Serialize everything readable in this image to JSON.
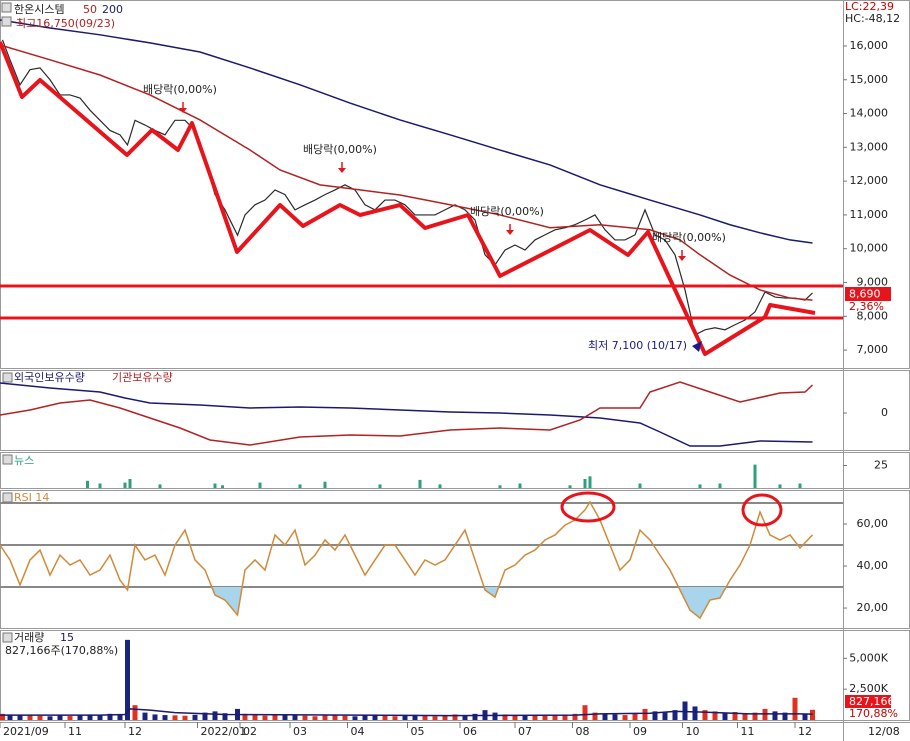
{
  "chart_data": [
    {
      "type": "line",
      "xlim": [
        0,
        337.2
      ],
      "ylim": [
        6470,
        17360
      ],
      "yticks": [
        {
          "value": 16000,
          "label": "16,000"
        },
        {
          "value": 15000,
          "label": "15,000"
        },
        {
          "value": 14000,
          "label": "14,000"
        },
        {
          "value": 13000,
          "label": "13,000"
        },
        {
          "value": 12000,
          "label": "12,000"
        },
        {
          "value": 11000,
          "label": "11,000"
        },
        {
          "value": 10000,
          "label": "10,000"
        },
        {
          "value": 9000,
          "label": "9,000"
        },
        {
          "value": 8000,
          "label": "8,000"
        },
        {
          "value": 7000,
          "label": "7,000"
        }
      ],
      "high_label": "최고16,750(09/23)",
      "lc": "LC:22,39",
      "hc": "HC:-48,12",
      "last_label": "8,690",
      "last_change": "2,36%",
      "annotations": [
        "배당락(0,00%)",
        "배당락(0,00%)",
        "배당락(0,00%)",
        "배당락(0,00%)",
        "최저 7,100 (10/17)"
      ],
      "series": [
        {
          "name": "한온시스템",
          "color": "#2a2a2a",
          "x": [
            1,
            4,
            8,
            12,
            16,
            20,
            24,
            28,
            32,
            36,
            40,
            44,
            48,
            51,
            54,
            58,
            62,
            66,
            70,
            74,
            78,
            82,
            86,
            90,
            95,
            98,
            102,
            106,
            110,
            114,
            118,
            122,
            126,
            130,
            134,
            138,
            142,
            146,
            150,
            154,
            158,
            162,
            166,
            170,
            174,
            178,
            182,
            186,
            190,
            194,
            198,
            202,
            206,
            210,
            214,
            218,
            222,
            226,
            230,
            234,
            238,
            242,
            246,
            250,
            254,
            258,
            262,
            266,
            270,
            274,
            278,
            282,
            286,
            290,
            294,
            298,
            302,
            306,
            310,
            314,
            318,
            322,
            325
          ],
          "values": [
            16180,
            15590,
            14850,
            15300,
            15350,
            15000,
            14550,
            14550,
            14460,
            14100,
            13800,
            13500,
            13370,
            13070,
            13800,
            13660,
            13500,
            13370,
            13800,
            13800,
            13500,
            12630,
            11600,
            11150,
            10400,
            11000,
            11300,
            11440,
            11740,
            11600,
            11150,
            11300,
            11440,
            11600,
            11740,
            11890,
            11740,
            11300,
            11150,
            11440,
            11440,
            11300,
            11000,
            11000,
            11000,
            11150,
            11300,
            11150,
            10850,
            9820,
            9520,
            9960,
            10110,
            9960,
            10260,
            10410,
            10560,
            10620,
            10710,
            10850,
            11000,
            10560,
            10260,
            10260,
            10410,
            11150,
            10410,
            10260,
            9820,
            8780,
            7450,
            7600,
            7660,
            7600,
            7750,
            7890,
            8130,
            8720,
            8570,
            8540,
            8540,
            8480,
            8690
          ]
        },
        {
          "name": "50",
          "color": "#b22222",
          "x": [
            0,
            20,
            40,
            60,
            80,
            100,
            112,
            128,
            144,
            160,
            180,
            200,
            220,
            240,
            260,
            272,
            280,
            292,
            304,
            316,
            325
          ],
          "values": [
            16030,
            15590,
            15140,
            14550,
            13810,
            12920,
            12330,
            11890,
            11740,
            11590,
            11300,
            11000,
            10620,
            10710,
            10560,
            10260,
            9820,
            9220,
            8780,
            8540,
            8480
          ]
        },
        {
          "name": "200",
          "color": "#1a1a6e",
          "x": [
            0,
            20,
            40,
            60,
            80,
            100,
            120,
            140,
            160,
            180,
            200,
            220,
            240,
            260,
            280,
            292,
            304,
            316,
            325
          ],
          "values": [
            16770,
            16530,
            16330,
            16090,
            15820,
            15350,
            14850,
            14310,
            13810,
            13370,
            12920,
            12480,
            11890,
            11440,
            11000,
            10710,
            10470,
            10260,
            10170
          ]
        }
      ]
    },
    {
      "type": "line",
      "xlim": [
        0,
        337.2
      ],
      "ylim": [
        -37,
        43
      ],
      "yticks": [
        0
      ],
      "series": [
        {
          "name": "외국인보유수량",
          "color": "#1a1a6e",
          "x": [
            0,
            20,
            40,
            50,
            60,
            80,
            100,
            120,
            140,
            160,
            180,
            200,
            220,
            240,
            256,
            264,
            276,
            288,
            304,
            325
          ],
          "values": [
            30,
            25,
            21,
            15,
            10,
            8,
            5,
            6,
            5,
            3,
            1,
            0,
            -2,
            -5,
            -10,
            -19,
            -33,
            -33,
            -28,
            -29
          ]
        },
        {
          "name": "기관보유수량",
          "color": "#b22222",
          "x": [
            0,
            12,
            24,
            36,
            48,
            60,
            72,
            84,
            100,
            120,
            140,
            160,
            180,
            200,
            220,
            232,
            240,
            256,
            260,
            272,
            284,
            296,
            312,
            322,
            325
          ],
          "values": [
            -2,
            3,
            10,
            13,
            5,
            -5,
            -15,
            -27,
            -32,
            -24,
            -22,
            -23,
            -17,
            -15,
            -17,
            -7,
            5,
            5,
            21,
            31,
            21,
            11,
            20,
            21,
            28
          ]
        }
      ]
    },
    {
      "type": "bar",
      "title": "뉴스",
      "xlim": [
        0,
        337.2
      ],
      "ylim": [
        0,
        40
      ],
      "yticks": [
        25
      ],
      "series": [
        {
          "color": "#2e9e7e",
          "x": [
            35,
            40,
            50,
            52,
            64,
            86,
            89,
            104,
            120,
            130,
            152,
            168,
            176,
            200,
            208,
            228,
            234,
            236,
            256,
            280,
            288,
            302,
            312,
            320
          ],
          "values": [
            8,
            5,
            6,
            10,
            4,
            5,
            3,
            6,
            4,
            7,
            4,
            9,
            4,
            3,
            5,
            3,
            10,
            13,
            5,
            4,
            5,
            26,
            4,
            5
          ]
        }
      ]
    },
    {
      "type": "line",
      "xlim": [
        0,
        337.2
      ],
      "ylim": [
        10.5,
        76.2
      ],
      "yticks": [
        {
          "value": 60,
          "label": "60,00"
        },
        {
          "value": 40,
          "label": "40,00"
        },
        {
          "value": 20,
          "label": "20,00"
        }
      ],
      "levels": [
        70,
        50,
        30
      ],
      "series": [
        {
          "name": "RSI 14",
          "color": "#d08a3a",
          "fill_below": 30,
          "fill_color": "#a8d4ec",
          "x": [
            0,
            4,
            8,
            12,
            16,
            20,
            24,
            28,
            32,
            36,
            40,
            44,
            48,
            51,
            54,
            58,
            62,
            66,
            70,
            74,
            78,
            82,
            86,
            90,
            95,
            98,
            102,
            106,
            110,
            114,
            118,
            122,
            126,
            130,
            134,
            138,
            142,
            146,
            150,
            154,
            158,
            162,
            166,
            170,
            174,
            178,
            182,
            186,
            190,
            194,
            198,
            202,
            206,
            210,
            214,
            218,
            222,
            226,
            230,
            234,
            236,
            240,
            244,
            248,
            252,
            256,
            260,
            264,
            268,
            272,
            276,
            280,
            284,
            288,
            292,
            296,
            300,
            304,
            308,
            312,
            316,
            320,
            325
          ],
          "values": [
            50,
            42.9,
            31,
            42.9,
            47.6,
            35.7,
            45.2,
            40.5,
            42.9,
            35.7,
            38.1,
            45.2,
            33.3,
            28.6,
            50,
            42.9,
            45.2,
            35.7,
            50,
            57.1,
            42.9,
            38.1,
            26.2,
            23.8,
            16.7,
            38.1,
            42.9,
            38.1,
            54.8,
            50,
            57.1,
            40.5,
            45.2,
            52.4,
            47.6,
            54.8,
            45.2,
            35.7,
            42.9,
            50,
            50,
            42.9,
            35.7,
            42.9,
            40.5,
            42.9,
            50,
            57.1,
            42.9,
            28.6,
            25.2,
            38.1,
            40.5,
            45.2,
            47.6,
            52.4,
            54.8,
            59.5,
            61.9,
            66.7,
            70.5,
            61.9,
            50,
            38.1,
            42.9,
            57.1,
            52.4,
            45.2,
            38.1,
            28.6,
            19,
            15.2,
            23.8,
            24.8,
            33.3,
            40.5,
            50,
            65.7,
            54.8,
            52.4,
            54.8,
            48.6,
            54.8
          ]
        }
      ]
    },
    {
      "type": "bar",
      "xlim": [
        0,
        337.2
      ],
      "ylim": [
        0,
        7300000
      ],
      "yticks": [
        {
          "value": 5000000,
          "label": "5,000K"
        },
        {
          "value": 2500000,
          "label": "2,500K"
        }
      ],
      "subtitle": "827,166주(170,88%)",
      "last_label": "827,166",
      "last_change": "170,88%",
      "xticks": [
        {
          "value": 0,
          "label": "2021/09"
        },
        {
          "value": 26,
          "label": "11"
        },
        {
          "value": 50,
          "label": "12"
        },
        {
          "value": 79,
          "label": "2022/01"
        },
        {
          "value": 96,
          "label": "02"
        },
        {
          "value": 116,
          "label": "03"
        },
        {
          "value": 139,
          "label": "04"
        },
        {
          "value": 163,
          "label": "05"
        },
        {
          "value": 184,
          "label": "06"
        },
        {
          "value": 206,
          "label": "07"
        },
        {
          "value": 229,
          "label": "08"
        },
        {
          "value": 252,
          "label": "09"
        },
        {
          "value": 273,
          "label": "10"
        },
        {
          "value": 295,
          "label": "11"
        },
        {
          "value": 318,
          "label": "12"
        }
      ],
      "date_label": "12/08",
      "series": [
        {
          "name": "거래량",
          "up_color": "#e03020",
          "down_color": "#1a237e",
          "x": [
            1,
            4,
            8,
            12,
            16,
            20,
            24,
            28,
            32,
            36,
            40,
            44,
            48,
            51,
            54,
            58,
            62,
            66,
            70,
            74,
            78,
            82,
            86,
            90,
            95,
            98,
            102,
            106,
            110,
            114,
            118,
            122,
            126,
            130,
            134,
            138,
            142,
            146,
            150,
            154,
            158,
            162,
            166,
            170,
            174,
            178,
            182,
            186,
            190,
            194,
            198,
            202,
            206,
            210,
            214,
            218,
            222,
            226,
            230,
            234,
            238,
            242,
            246,
            250,
            254,
            258,
            262,
            266,
            270,
            274,
            278,
            282,
            286,
            290,
            294,
            298,
            302,
            306,
            310,
            314,
            318,
            322,
            325
          ],
          "values": [
            500000,
            450000,
            380000,
            420000,
            350000,
            300000,
            380000,
            320000,
            400000,
            450000,
            380000,
            500000,
            420000,
            6500000,
            1200000,
            600000,
            450000,
            400000,
            380000,
            350000,
            420000,
            600000,
            700000,
            550000,
            900000,
            500000,
            400000,
            350000,
            450000,
            380000,
            420000,
            350000,
            300000,
            380000,
            420000,
            350000,
            300000,
            400000,
            450000,
            350000,
            300000,
            380000,
            420000,
            350000,
            300000,
            400000,
            450000,
            380000,
            500000,
            800000,
            600000,
            450000,
            400000,
            380000,
            350000,
            420000,
            380000,
            450000,
            500000,
            1200000,
            600000,
            500000,
            450000,
            400000,
            500000,
            900000,
            700000,
            600000,
            800000,
            1500000,
            1100000,
            800000,
            700000,
            600000,
            650000,
            550000,
            600000,
            900000,
            700000,
            600000,
            1800000,
            500000,
            827166
          ]
        },
        {
          "name": "15",
          "type": "line",
          "color": "#1a1a6e",
          "x": [
            0,
            40,
            50,
            52,
            60,
            70,
            90,
            180,
            230,
            240,
            260,
            270,
            280,
            300,
            320,
            325
          ],
          "values": [
            400000,
            400000,
            450000,
            900000,
            800000,
            600000,
            450000,
            350000,
            400000,
            500000,
            550000,
            700000,
            650000,
            500000,
            500000,
            480000
          ]
        }
      ]
    }
  ]
}
